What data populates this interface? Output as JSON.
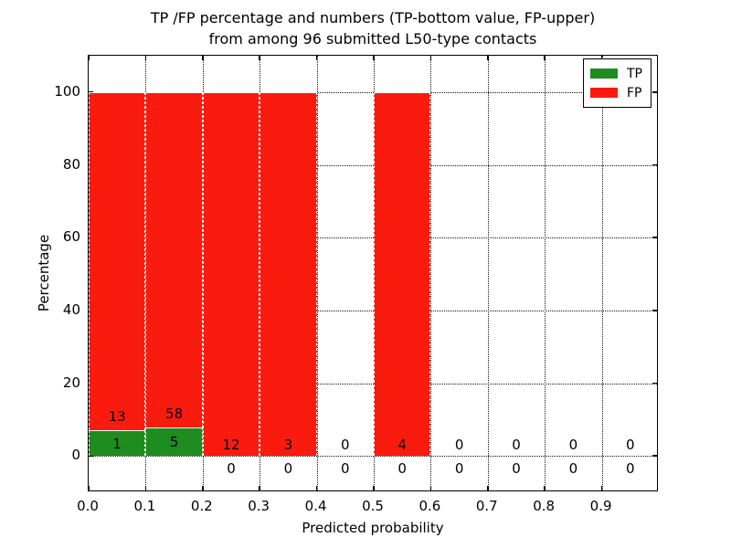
{
  "title": {
    "line1": "TP /FP percentage and numbers (TP-bottom value, FP-upper)",
    "line2": "from among 96 submitted L50-type contacts"
  },
  "axes": {
    "ylabel": "Percentage",
    "xlabel": "Predicted probability",
    "ytick_labels": [
      "0",
      "20",
      "40",
      "60",
      "80",
      "100"
    ],
    "ytick_values": [
      0,
      20,
      40,
      60,
      80,
      100
    ],
    "xtick_labels": [
      "0.0",
      "0.1",
      "0.2",
      "0.3",
      "0.4",
      "0.5",
      "0.6",
      "0.7",
      "0.8",
      "0.9"
    ],
    "xtick_values": [
      0.0,
      0.1,
      0.2,
      0.3,
      0.4,
      0.5,
      0.6,
      0.7,
      0.8,
      0.9
    ]
  },
  "legend": {
    "position": "upper right",
    "items": [
      {
        "label": "TP",
        "color": "#1f8c1f"
      },
      {
        "label": "FP",
        "color": "#fa1b0f"
      }
    ]
  },
  "chart_data": {
    "type": "bar",
    "stacked": true,
    "title": "TP /FP percentage and numbers (TP-bottom value, FP-upper) from among 96 submitted L50-type contacts",
    "xlabel": "Predicted probability",
    "ylabel": "Percentage",
    "xlim": [
      0.0,
      1.0
    ],
    "ylim": [
      -10,
      110
    ],
    "grid": "dotted",
    "legend_position": "upper right",
    "total_contacts": 96,
    "bin_width": 0.1,
    "bin_edges": [
      0.0,
      0.1,
      0.2,
      0.3,
      0.4,
      0.5,
      0.6,
      0.7,
      0.8,
      0.9,
      1.0
    ],
    "series": [
      {
        "name": "TP",
        "color": "#1f8c1f",
        "counts": [
          1,
          5,
          0,
          0,
          0,
          0,
          0,
          0,
          0,
          0
        ]
      },
      {
        "name": "FP",
        "color": "#fa1b0f",
        "counts": [
          13,
          58,
          12,
          3,
          0,
          4,
          0,
          0,
          0,
          0
        ]
      }
    ],
    "tp_percent": [
      7.1,
      7.9,
      0,
      0,
      0,
      0,
      0,
      0,
      0,
      0
    ],
    "fp_percent": [
      92.9,
      92.1,
      100,
      100,
      0,
      100,
      0,
      0,
      0,
      0
    ]
  }
}
